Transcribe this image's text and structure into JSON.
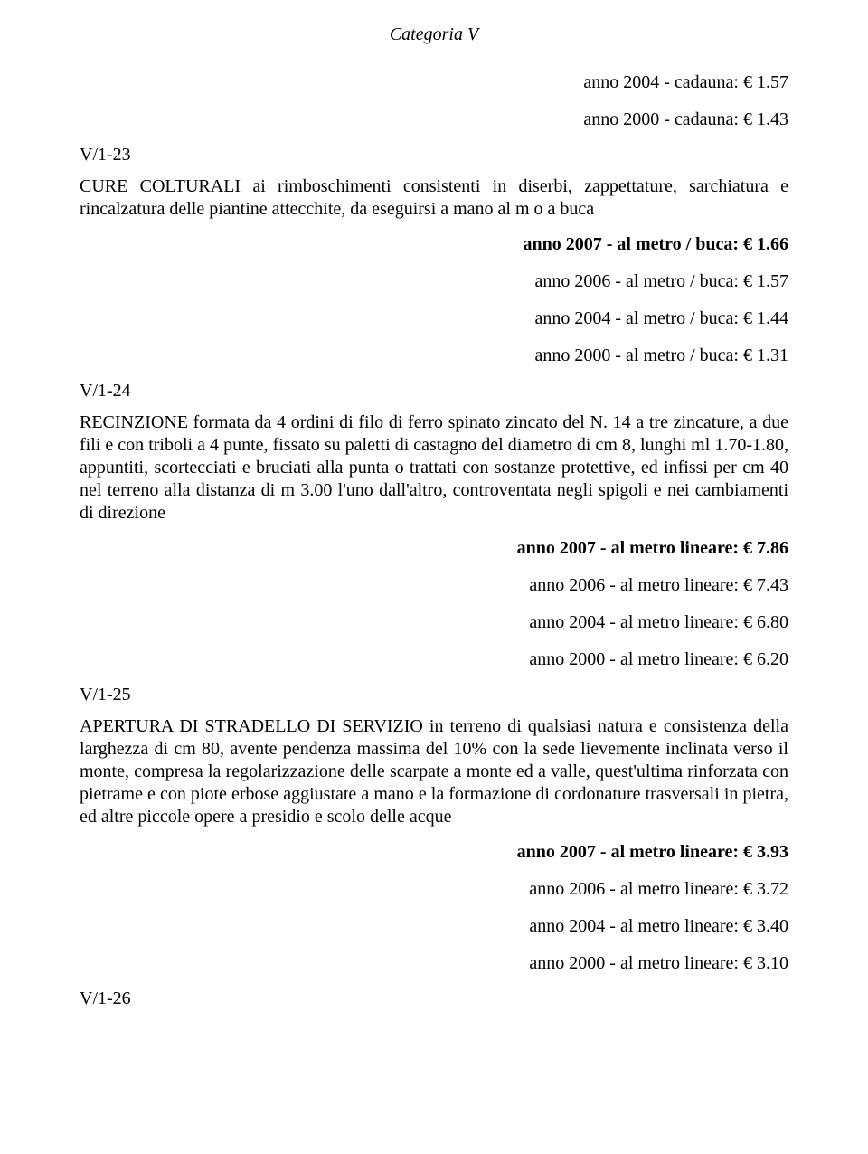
{
  "header": {
    "category": "Categoria V"
  },
  "top_prices": [
    {
      "text": "anno 2004 - cadauna: € 1.57",
      "bold": false
    },
    {
      "text": "anno 2000 - cadauna: € 1.43",
      "bold": false
    }
  ],
  "sections": [
    {
      "code": "V/1-23",
      "body": "CURE COLTURALI ai rimboschimenti consistenti in diserbi, zappettature, sarchiatura e rincalzatura delle piantine attecchite, da eseguirsi a mano al m o a buca",
      "prices": [
        {
          "text": "anno 2007 - al metro / buca: € 1.66",
          "bold": true
        },
        {
          "text": "anno 2006 - al metro / buca: € 1.57",
          "bold": false
        },
        {
          "text": "anno 2004 - al metro / buca: € 1.44",
          "bold": false
        },
        {
          "text": "anno 2000 - al metro / buca: € 1.31",
          "bold": false
        }
      ]
    },
    {
      "code": "V/1-24",
      "body": "RECINZIONE formata da 4 ordini di filo di ferro spinato zincato del N. 14 a tre zincature, a due fili e con triboli a 4 punte, fissato su paletti di castagno del diametro di cm 8, lunghi ml 1.70-1.80, appuntiti, scortecciati e bruciati alla punta o trattati con sostanze protettive, ed infissi per cm 40 nel terreno alla distanza di m 3.00 l'uno dall'altro, controventata negli spigoli e nei cambiamenti di direzione",
      "prices": [
        {
          "text": "anno 2007 - al metro lineare: € 7.86",
          "bold": true
        },
        {
          "text": "anno 2006 - al metro lineare: € 7.43",
          "bold": false
        },
        {
          "text": "anno 2004 - al metro lineare: € 6.80",
          "bold": false
        },
        {
          "text": "anno 2000 - al metro lineare: € 6.20",
          "bold": false
        }
      ]
    },
    {
      "code": "V/1-25",
      "body": "APERTURA DI STRADELLO DI SERVIZIO in terreno di qualsiasi natura e consistenza della larghezza di cm 80, avente pendenza massima del 10% con la sede lievemente inclinata verso il monte, compresa la regolarizzazione delle scarpate a monte ed a valle, quest'ultima rinforzata con pietrame e con piote erbose aggiustate a mano e la formazione di cordonature trasversali in pietra, ed altre piccole opere a presidio e scolo delle acque",
      "prices": [
        {
          "text": "anno 2007 - al metro lineare: € 3.93",
          "bold": true
        },
        {
          "text": "anno 2006 - al metro lineare: € 3.72",
          "bold": false
        },
        {
          "text": "anno 2004 - al metro lineare: € 3.40",
          "bold": false
        },
        {
          "text": "anno 2000 - al metro lineare: € 3.10",
          "bold": false
        }
      ]
    }
  ],
  "trailing_code": "V/1-26"
}
